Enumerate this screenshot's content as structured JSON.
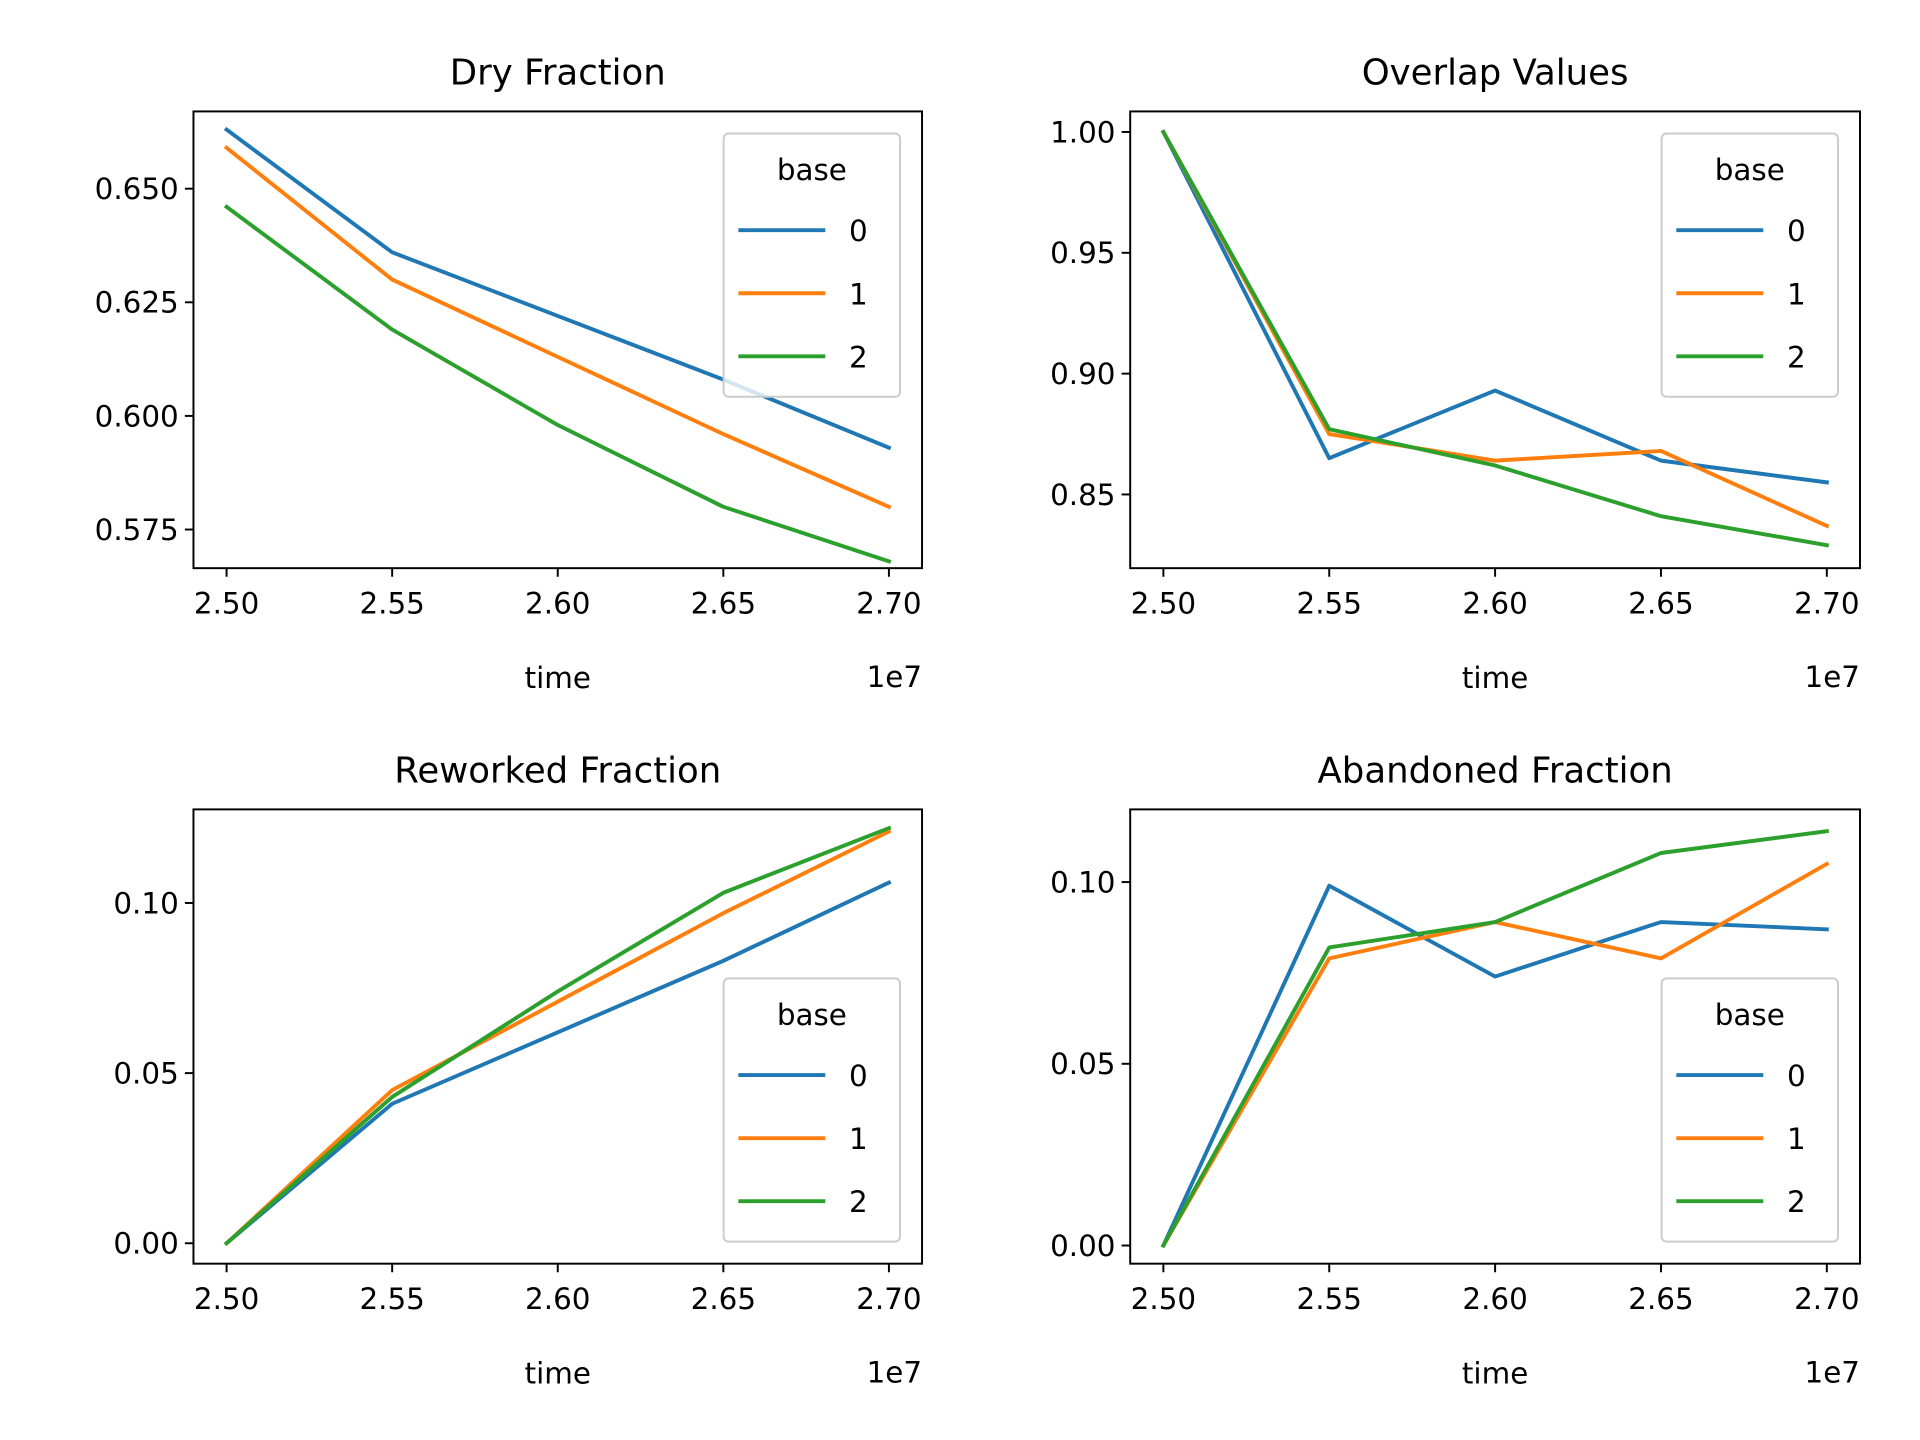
{
  "colors": {
    "series": [
      "#1f77b4",
      "#ff7f0e",
      "#2ca02c"
    ],
    "axes": "#000000",
    "legend_border": "#cccccc"
  },
  "chart_data": [
    {
      "type": "line",
      "title": "Dry Fraction",
      "xlabel": "time",
      "ylabel": "",
      "x_offset_label": "1e7",
      "x": [
        2.5,
        2.55,
        2.6,
        2.65,
        2.7
      ],
      "xticks": [
        "2.50",
        "2.55",
        "2.60",
        "2.65",
        "2.70"
      ],
      "xlim": [
        2.49,
        2.71
      ],
      "ylim": [
        0.5665,
        0.667
      ],
      "yticks": [
        "0.575",
        "0.600",
        "0.625",
        "0.650"
      ],
      "legend": {
        "title": "base",
        "location": "upper right"
      },
      "series": [
        {
          "name": "0",
          "values": [
            0.663,
            0.636,
            0.622,
            0.608,
            0.593
          ]
        },
        {
          "name": "1",
          "values": [
            0.659,
            0.63,
            0.613,
            0.596,
            0.58
          ]
        },
        {
          "name": "2",
          "values": [
            0.646,
            0.619,
            0.598,
            0.58,
            0.568
          ]
        }
      ]
    },
    {
      "type": "line",
      "title": "Overlap Values",
      "xlabel": "time",
      "ylabel": "",
      "x_offset_label": "1e7",
      "x": [
        2.5,
        2.55,
        2.6,
        2.65,
        2.7
      ],
      "xticks": [
        "2.50",
        "2.55",
        "2.60",
        "2.65",
        "2.70"
      ],
      "xlim": [
        2.49,
        2.71
      ],
      "ylim": [
        0.8195,
        1.0085
      ],
      "yticks": [
        "0.85",
        "0.90",
        "0.95",
        "1.00"
      ],
      "legend": {
        "title": "base",
        "location": "upper right"
      },
      "series": [
        {
          "name": "0",
          "values": [
            1.0,
            0.865,
            0.893,
            0.864,
            0.855
          ]
        },
        {
          "name": "1",
          "values": [
            1.0,
            0.875,
            0.864,
            0.868,
            0.837
          ]
        },
        {
          "name": "2",
          "values": [
            1.0,
            0.877,
            0.862,
            0.841,
            0.829
          ]
        }
      ]
    },
    {
      "type": "line",
      "title": "Reworked Fraction",
      "xlabel": "time",
      "ylabel": "",
      "x_offset_label": "1e7",
      "x": [
        2.5,
        2.55,
        2.6,
        2.65,
        2.7
      ],
      "xticks": [
        "2.50",
        "2.55",
        "2.60",
        "2.65",
        "2.70"
      ],
      "xlim": [
        2.49,
        2.71
      ],
      "ylim": [
        -0.006,
        0.1275
      ],
      "yticks": [
        "0.00",
        "0.05",
        "0.10"
      ],
      "legend": {
        "title": "base",
        "location": "lower right"
      },
      "series": [
        {
          "name": "0",
          "values": [
            0.0,
            0.041,
            0.062,
            0.083,
            0.106
          ]
        },
        {
          "name": "1",
          "values": [
            0.0,
            0.045,
            0.071,
            0.097,
            0.121
          ]
        },
        {
          "name": "2",
          "values": [
            0.0,
            0.043,
            0.074,
            0.103,
            0.122
          ]
        }
      ]
    },
    {
      "type": "line",
      "title": "Abandoned Fraction",
      "xlabel": "time",
      "ylabel": "",
      "x_offset_label": "1e7",
      "x": [
        2.5,
        2.55,
        2.6,
        2.65,
        2.7
      ],
      "xticks": [
        "2.50",
        "2.55",
        "2.60",
        "2.65",
        "2.70"
      ],
      "xlim": [
        2.49,
        2.71
      ],
      "ylim": [
        -0.005,
        0.12
      ],
      "yticks": [
        "0.00",
        "0.05",
        "0.10"
      ],
      "legend": {
        "title": "base",
        "location": "lower right"
      },
      "series": [
        {
          "name": "0",
          "values": [
            0.0,
            0.099,
            0.074,
            0.089,
            0.087
          ]
        },
        {
          "name": "1",
          "values": [
            0.0,
            0.079,
            0.089,
            0.079,
            0.105
          ]
        },
        {
          "name": "2",
          "values": [
            0.0,
            0.082,
            0.089,
            0.108,
            0.114
          ]
        }
      ]
    }
  ]
}
